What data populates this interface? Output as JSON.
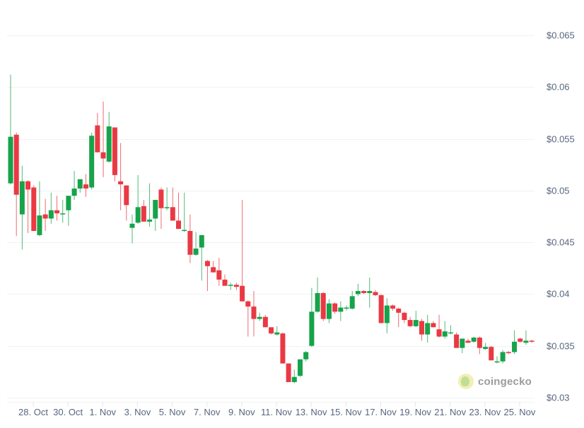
{
  "chart_data": {
    "type": "candlestick",
    "title": "",
    "xlabel": "",
    "ylabel": "",
    "ylim": [
      0.03,
      0.065
    ],
    "grid": true,
    "legend": "none",
    "interval": "8h",
    "colors": {
      "up": "#16a34a",
      "down": "#ea3943",
      "grid": "#eff2f5",
      "axis_text": "#58667e"
    },
    "y_ticks": [
      "$0.03",
      "$0.035",
      "$0.04",
      "$0.045",
      "$0.05",
      "$0.055",
      "$0.06",
      "$0.065"
    ],
    "y_tick_values": [
      0.03,
      0.035,
      0.04,
      0.045,
      0.05,
      0.055,
      0.06,
      0.065
    ],
    "x_ticks": [
      "28. Oct",
      "30. Oct",
      "1. Nov",
      "3. Nov",
      "5. Nov",
      "7. Nov",
      "9. Nov",
      "11. Nov",
      "13. Nov",
      "15. Nov",
      "17. Nov",
      "19. Nov",
      "21. Nov",
      "23. Nov",
      "25. Nov"
    ],
    "ohlc_columns": [
      "open",
      "high",
      "low",
      "close"
    ],
    "ohlc": [
      [
        0.0507,
        0.0612,
        0.0506,
        0.0552
      ],
      [
        0.0554,
        0.0556,
        0.0456,
        0.0496
      ],
      [
        0.0477,
        0.0524,
        0.0443,
        0.0509
      ],
      [
        0.0509,
        0.051,
        0.0459,
        0.0501
      ],
      [
        0.0503,
        0.0505,
        0.0461,
        0.0461
      ],
      [
        0.0457,
        0.0509,
        0.0456,
        0.0476
      ],
      [
        0.0477,
        0.0492,
        0.0461,
        0.0473
      ],
      [
        0.0473,
        0.0498,
        0.0468,
        0.0481
      ],
      [
        0.0481,
        0.0495,
        0.0471,
        0.0478
      ],
      [
        0.0477,
        0.0491,
        0.0469,
        0.0478
      ],
      [
        0.0481,
        0.0486,
        0.0466,
        0.0495
      ],
      [
        0.0495,
        0.0519,
        0.0491,
        0.0502
      ],
      [
        0.0502,
        0.0508,
        0.0498,
        0.0511
      ],
      [
        0.0506,
        0.0516,
        0.0494,
        0.0502
      ],
      [
        0.0503,
        0.0556,
        0.0501,
        0.0553
      ],
      [
        0.0563,
        0.0575,
        0.0537,
        0.0537
      ],
      [
        0.0537,
        0.0586,
        0.0513,
        0.0531
      ],
      [
        0.0528,
        0.0576,
        0.0527,
        0.0562
      ],
      [
        0.0561,
        0.0561,
        0.0509,
        0.0515
      ],
      [
        0.0509,
        0.0546,
        0.0481,
        0.0506
      ],
      [
        0.0505,
        0.0505,
        0.0471,
        0.0486
      ],
      [
        0.0464,
        0.0477,
        0.0449,
        0.0468
      ],
      [
        0.0469,
        0.0515,
        0.0468,
        0.0484
      ],
      [
        0.0485,
        0.0491,
        0.047,
        0.047
      ],
      [
        0.047,
        0.0507,
        0.0465,
        0.0472
      ],
      [
        0.0473,
        0.0491,
        0.0461,
        0.0491
      ],
      [
        0.0501,
        0.0503,
        0.0463,
        0.0483
      ],
      [
        0.0483,
        0.0503,
        0.0481,
        0.0484
      ],
      [
        0.0484,
        0.0503,
        0.0471,
        0.0471
      ],
      [
        0.0471,
        0.0498,
        0.0463,
        0.0463
      ],
      [
        0.0462,
        0.0498,
        0.046,
        0.0462
      ],
      [
        0.0461,
        0.0477,
        0.043,
        0.0438
      ],
      [
        0.0438,
        0.046,
        0.0437,
        0.0444
      ],
      [
        0.0445,
        0.0457,
        0.0413,
        0.0457
      ],
      [
        0.0432,
        0.0433,
        0.0403,
        0.0427
      ],
      [
        0.0426,
        0.0432,
        0.0421,
        0.0421
      ],
      [
        0.0423,
        0.0435,
        0.0408,
        0.0414
      ],
      [
        0.0414,
        0.0419,
        0.0408,
        0.0408
      ],
      [
        0.0408,
        0.0411,
        0.0404,
        0.0409
      ],
      [
        0.0409,
        0.0411,
        0.0404,
        0.0407
      ],
      [
        0.0408,
        0.0491,
        0.0393,
        0.0393
      ],
      [
        0.0393,
        0.0394,
        0.0359,
        0.0388
      ],
      [
        0.0388,
        0.0403,
        0.0359,
        0.0376
      ],
      [
        0.0376,
        0.0382,
        0.0374,
        0.0378
      ],
      [
        0.0378,
        0.038,
        0.0368,
        0.0368
      ],
      [
        0.0368,
        0.0368,
        0.0361,
        0.0362
      ],
      [
        0.0361,
        0.0369,
        0.036,
        0.0363
      ],
      [
        0.0362,
        0.0363,
        0.0333,
        0.0333
      ],
      [
        0.0333,
        0.0333,
        0.0315,
        0.0315
      ],
      [
        0.0315,
        0.0327,
        0.0314,
        0.032
      ],
      [
        0.0321,
        0.0325,
        0.032,
        0.0337
      ],
      [
        0.0337,
        0.0345,
        0.0335,
        0.0344
      ],
      [
        0.035,
        0.0406,
        0.0349,
        0.0383
      ],
      [
        0.0383,
        0.0416,
        0.0382,
        0.0401
      ],
      [
        0.0401,
        0.0402,
        0.0374,
        0.0376
      ],
      [
        0.0376,
        0.0395,
        0.0372,
        0.0391
      ],
      [
        0.0391,
        0.0392,
        0.0381,
        0.0383
      ],
      [
        0.0383,
        0.0393,
        0.0374,
        0.0387
      ],
      [
        0.0386,
        0.0389,
        0.0384,
        0.0387
      ],
      [
        0.0386,
        0.0403,
        0.0385,
        0.0398
      ],
      [
        0.04,
        0.041,
        0.0398,
        0.0403
      ],
      [
        0.0403,
        0.0404,
        0.04,
        0.0401
      ],
      [
        0.0401,
        0.0416,
        0.0387,
        0.0403
      ],
      [
        0.0402,
        0.0404,
        0.0398,
        0.0399
      ],
      [
        0.0399,
        0.04,
        0.0372,
        0.0372
      ],
      [
        0.0372,
        0.0396,
        0.0362,
        0.0389
      ],
      [
        0.0389,
        0.039,
        0.0384,
        0.0386
      ],
      [
        0.0386,
        0.0387,
        0.0368,
        0.0382
      ],
      [
        0.0382,
        0.0383,
        0.0372,
        0.0375
      ],
      [
        0.0375,
        0.0378,
        0.0368,
        0.0369
      ],
      [
        0.0369,
        0.0384,
        0.0368,
        0.0375
      ],
      [
        0.0374,
        0.0376,
        0.0355,
        0.0361
      ],
      [
        0.0361,
        0.038,
        0.0353,
        0.0372
      ],
      [
        0.0372,
        0.0374,
        0.0368,
        0.0368
      ],
      [
        0.0366,
        0.038,
        0.0358,
        0.0359
      ],
      [
        0.0359,
        0.0374,
        0.0357,
        0.0364
      ],
      [
        0.0363,
        0.037,
        0.0361,
        0.0363
      ],
      [
        0.0361,
        0.0363,
        0.0348,
        0.0348
      ],
      [
        0.0348,
        0.0357,
        0.0343,
        0.0357
      ],
      [
        0.0355,
        0.0357,
        0.0353,
        0.0353
      ],
      [
        0.0354,
        0.0359,
        0.0353,
        0.0358
      ],
      [
        0.0358,
        0.0359,
        0.0342,
        0.0348
      ],
      [
        0.0347,
        0.0353,
        0.0346,
        0.0349
      ],
      [
        0.0349,
        0.035,
        0.0336,
        0.0336
      ],
      [
        0.0335,
        0.034,
        0.0333,
        0.0335
      ],
      [
        0.0335,
        0.0346,
        0.0333,
        0.0344
      ],
      [
        0.0344,
        0.0345,
        0.0342,
        0.0343
      ],
      [
        0.0344,
        0.0365,
        0.0342,
        0.0354
      ],
      [
        0.0357,
        0.0358,
        0.0353,
        0.0354
      ],
      [
        0.0353,
        0.0365,
        0.0351,
        0.0355
      ],
      [
        0.0355,
        0.0356,
        0.0353,
        0.0354
      ]
    ]
  },
  "watermark": {
    "name": "coingecko",
    "icon": "gecko-logo-icon"
  }
}
